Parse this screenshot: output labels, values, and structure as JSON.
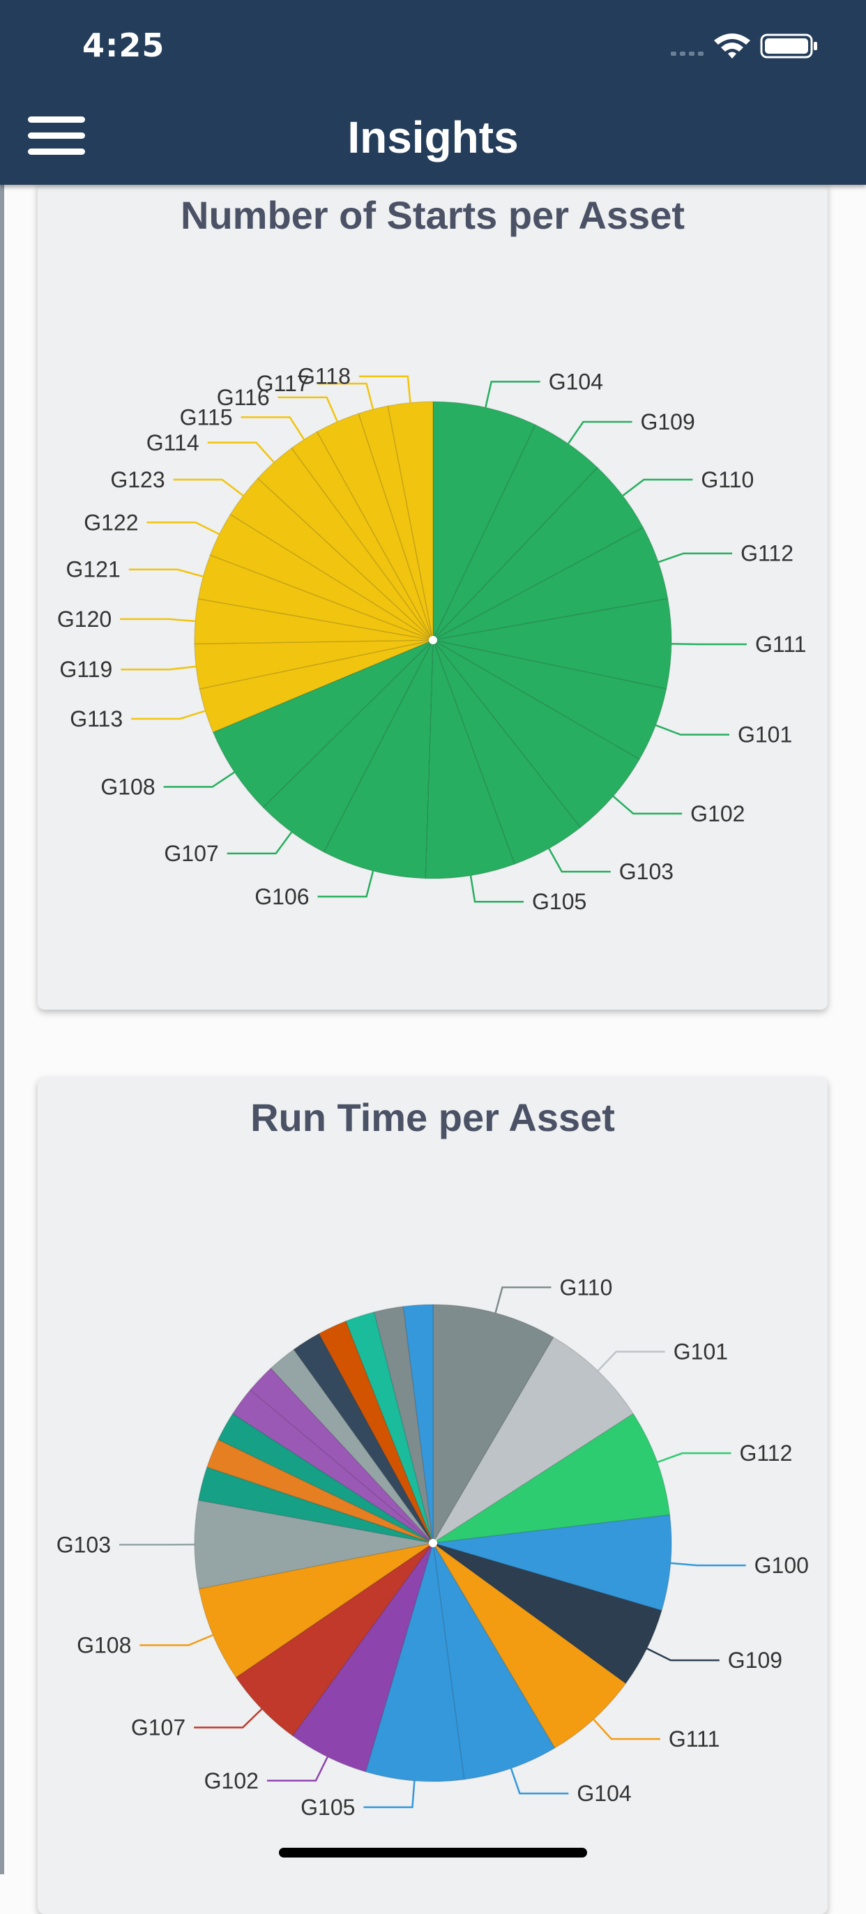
{
  "status_bar": {
    "time": "4:25"
  },
  "header": {
    "title": "Insights",
    "menu_icon": "hamburger-icon"
  },
  "colors": {
    "header_bg": "#243d5a",
    "green": "#27ae60",
    "yellow": "#f1c40f"
  },
  "chart_data": [
    {
      "type": "pie",
      "title": "Number of Starts per Asset",
      "slices": [
        {
          "label": "G104",
          "value": 7,
          "color": "#27ae60"
        },
        {
          "label": "G109",
          "value": 5,
          "color": "#27ae60"
        },
        {
          "label": "G110",
          "value": 5,
          "color": "#27ae60"
        },
        {
          "label": "G112",
          "value": 5,
          "color": "#27ae60"
        },
        {
          "label": "G111",
          "value": 6,
          "color": "#27ae60"
        },
        {
          "label": "G101",
          "value": 5,
          "color": "#27ae60"
        },
        {
          "label": "G102",
          "value": 6,
          "color": "#27ae60"
        },
        {
          "label": "G103",
          "value": 5,
          "color": "#27ae60"
        },
        {
          "label": "G105",
          "value": 6,
          "color": "#27ae60"
        },
        {
          "label": "G106",
          "value": 7,
          "color": "#27ae60"
        },
        {
          "label": "G107",
          "value": 5,
          "color": "#27ae60"
        },
        {
          "label": "G108",
          "value": 6,
          "color": "#27ae60"
        },
        {
          "label": "G113",
          "value": 3,
          "color": "#f1c40f"
        },
        {
          "label": "G119",
          "value": 3,
          "color": "#f1c40f"
        },
        {
          "label": "G120",
          "value": 3,
          "color": "#f1c40f"
        },
        {
          "label": "G121",
          "value": 3,
          "color": "#f1c40f"
        },
        {
          "label": "G122",
          "value": 3,
          "color": "#f1c40f"
        },
        {
          "label": "G123",
          "value": 3,
          "color": "#f1c40f"
        },
        {
          "label": "G114",
          "value": 3,
          "color": "#f1c40f"
        },
        {
          "label": "G115",
          "value": 2,
          "color": "#f1c40f"
        },
        {
          "label": "G116",
          "value": 3,
          "color": "#f1c40f"
        },
        {
          "label": "G117",
          "value": 2,
          "color": "#f1c40f"
        },
        {
          "label": "G118",
          "value": 3,
          "color": "#f1c40f"
        }
      ]
    },
    {
      "type": "pie",
      "title": "Run Time per Asset",
      "slices": [
        {
          "label": "G110",
          "value": 8.5,
          "color": "#7f8c8d"
        },
        {
          "label": "G101",
          "value": 7.5,
          "color": "#bdc3c7"
        },
        {
          "label": "G112",
          "value": 7.3,
          "color": "#2ecc71"
        },
        {
          "label": "G100",
          "value": 6.5,
          "color": "#3498db"
        },
        {
          "label": "G109",
          "value": 5.5,
          "color": "#2c3e50"
        },
        {
          "label": "G111",
          "value": 6.5,
          "color": "#f39c12"
        },
        {
          "label": "G104",
          "value": 6.5,
          "color": "#3498db"
        },
        {
          "label": "G105",
          "value": 6.7,
          "color": "#3498db"
        },
        {
          "label": "G102",
          "value": 5.5,
          "color": "#8e44ad"
        },
        {
          "label": "G107",
          "value": 5.5,
          "color": "#c0392b"
        },
        {
          "label": "G108",
          "value": 6.5,
          "color": "#f39c12"
        },
        {
          "label": "G103",
          "value": 6.0,
          "color": "#95a5a6"
        },
        {
          "label": "",
          "value": 2.3,
          "color": "#16a085"
        },
        {
          "label": "",
          "value": 2.0,
          "color": "#e67e22"
        },
        {
          "label": "",
          "value": 2.0,
          "color": "#16a085"
        },
        {
          "label": "",
          "value": 2.0,
          "color": "#9b59b6"
        },
        {
          "label": "",
          "value": 2.0,
          "color": "#9b59b6"
        },
        {
          "label": "",
          "value": 2.0,
          "color": "#95a5a6"
        },
        {
          "label": "",
          "value": 2.0,
          "color": "#34495e"
        },
        {
          "label": "",
          "value": 2.0,
          "color": "#d35400"
        },
        {
          "label": "",
          "value": 2.0,
          "color": "#1abc9c"
        },
        {
          "label": "",
          "value": 2.0,
          "color": "#7f8c8d"
        },
        {
          "label": "",
          "value": 2.0,
          "color": "#3498db"
        }
      ]
    }
  ]
}
